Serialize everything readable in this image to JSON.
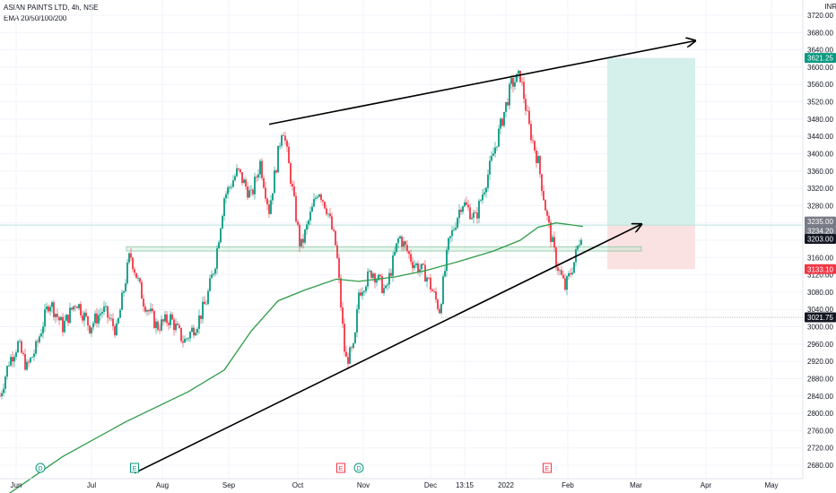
{
  "header": {
    "symbol": "ASIAN PAINTS LTD, 4h, NSE",
    "indicator": "EMA 20/50/100/200"
  },
  "currency": "INR",
  "chart_data": {
    "type": "candlestick",
    "title": "ASIAN PAINTS LTD, 4h, NSE",
    "ylim": [
      2650,
      3730
    ],
    "y_ticks": [
      2680,
      2720,
      2760,
      2800,
      2840,
      2880,
      2920,
      2960,
      3000,
      3040,
      3080,
      3120,
      3160,
      3200,
      3240,
      3280,
      3320,
      3360,
      3400,
      3440,
      3480,
      3520,
      3560,
      3600,
      3640,
      3680,
      3720
    ],
    "x_ticks": [
      "Jun",
      "Jul",
      "Aug",
      "Sep",
      "Oct",
      "Nov",
      "Dec",
      "13:15",
      "2022",
      "Feb",
      "Mar",
      "Apr",
      "May"
    ],
    "close_path": [
      {
        "t": 0,
        "p": 2840
      },
      {
        "t": 2,
        "p": 2920
      },
      {
        "t": 4,
        "p": 2960
      },
      {
        "t": 6,
        "p": 2905
      },
      {
        "t": 8,
        "p": 2950
      },
      {
        "t": 11,
        "p": 3060
      },
      {
        "t": 14,
        "p": 3000
      },
      {
        "t": 17,
        "p": 3060
      },
      {
        "t": 20,
        "p": 3000
      },
      {
        "t": 23,
        "p": 3040
      },
      {
        "t": 26,
        "p": 2990
      },
      {
        "t": 29,
        "p": 3170
      },
      {
        "t": 32,
        "p": 3060
      },
      {
        "t": 35,
        "p": 3000
      },
      {
        "t": 38,
        "p": 3020
      },
      {
        "t": 41,
        "p": 2965
      },
      {
        "t": 44,
        "p": 3010
      },
      {
        "t": 46,
        "p": 3060
      },
      {
        "t": 48,
        "p": 3150
      },
      {
        "t": 50,
        "p": 3300
      },
      {
        "t": 53,
        "p": 3360
      },
      {
        "t": 56,
        "p": 3300
      },
      {
        "t": 58,
        "p": 3380
      },
      {
        "t": 60,
        "p": 3270
      },
      {
        "t": 62,
        "p": 3400
      },
      {
        "t": 63,
        "p": 3470
      },
      {
        "t": 65,
        "p": 3330
      },
      {
        "t": 67,
        "p": 3180
      },
      {
        "t": 69,
        "p": 3250
      },
      {
        "t": 71,
        "p": 3320
      },
      {
        "t": 73,
        "p": 3270
      },
      {
        "t": 75,
        "p": 3180
      },
      {
        "t": 77,
        "p": 2920
      },
      {
        "t": 79,
        "p": 2950
      },
      {
        "t": 80,
        "p": 3080
      },
      {
        "t": 83,
        "p": 3130
      },
      {
        "t": 86,
        "p": 3080
      },
      {
        "t": 89,
        "p": 3210
      },
      {
        "t": 92,
        "p": 3150
      },
      {
        "t": 95,
        "p": 3120
      },
      {
        "t": 98,
        "p": 3040
      },
      {
        "t": 100,
        "p": 3190
      },
      {
        "t": 103,
        "p": 3290
      },
      {
        "t": 106,
        "p": 3250
      },
      {
        "t": 109,
        "p": 3360
      },
      {
        "t": 112,
        "p": 3480
      },
      {
        "t": 114,
        "p": 3560
      },
      {
        "t": 116,
        "p": 3580
      },
      {
        "t": 118,
        "p": 3460
      },
      {
        "t": 120,
        "p": 3380
      },
      {
        "t": 122,
        "p": 3250
      },
      {
        "t": 124,
        "p": 3150
      },
      {
        "t": 126,
        "p": 3090
      },
      {
        "t": 128,
        "p": 3150
      },
      {
        "t": 130,
        "p": 3235
      }
    ],
    "ema_200": [
      {
        "t": 0,
        "p": 2600
      },
      {
        "t": 14,
        "p": 2700
      },
      {
        "t": 28,
        "p": 2780
      },
      {
        "t": 42,
        "p": 2850
      },
      {
        "t": 50,
        "p": 2900
      },
      {
        "t": 56,
        "p": 2990
      },
      {
        "t": 62,
        "p": 3060
      },
      {
        "t": 68,
        "p": 3085
      },
      {
        "t": 75,
        "p": 3110
      },
      {
        "t": 80,
        "p": 3105
      },
      {
        "t": 88,
        "p": 3115
      },
      {
        "t": 95,
        "p": 3130
      },
      {
        "t": 102,
        "p": 3150
      },
      {
        "t": 110,
        "p": 3175
      },
      {
        "t": 116,
        "p": 3200
      },
      {
        "t": 120,
        "p": 3230
      },
      {
        "t": 124,
        "p": 3240
      },
      {
        "t": 130,
        "p": 3232
      }
    ],
    "trendlines": [
      {
        "from": [
          60,
          3468
        ],
        "to": [
          155,
          3661
        ]
      },
      {
        "from": [
          30,
          2662
        ],
        "to": [
          143,
          3237
        ]
      }
    ],
    "support_zone": {
      "y_top": 3185,
      "y_bottom": 3175
    },
    "horizontal_levels": [
      3021.75,
      3235.0
    ],
    "position": {
      "entry": 3235.0,
      "target": 3621.25,
      "stop": 3133.1
    },
    "price_labels": [
      {
        "value": "3621.25",
        "price": 3621.25,
        "color": "#089981"
      },
      {
        "value": "3235.00",
        "price": 3235.0,
        "color": "#787b86"
      },
      {
        "value": "3234.20",
        "price": 3234.2,
        "color": "#787b86"
      },
      {
        "value": "3203.00",
        "price": 3203.0,
        "color": "#131722"
      },
      {
        "value": "3133.10",
        "price": 3133.1,
        "color": "#f23645"
      },
      {
        "value": "3021.75",
        "price": 3021.75,
        "color": "#131722"
      }
    ],
    "event_markers": [
      {
        "label": "D",
        "t": 9,
        "color": "#089981"
      },
      {
        "label": "E",
        "t": 30,
        "color": "#089981"
      },
      {
        "label": "E",
        "t": 76,
        "color": "#f23645"
      },
      {
        "label": "D",
        "t": 80,
        "color": "#089981"
      },
      {
        "label": "E",
        "t": 122,
        "color": "#f23645"
      }
    ],
    "colors": {
      "up": "#089981",
      "down": "#f23645",
      "ema": "#2e9b48",
      "target_zone": "#d5efeb",
      "stop_zone": "#fbe2e2"
    }
  }
}
